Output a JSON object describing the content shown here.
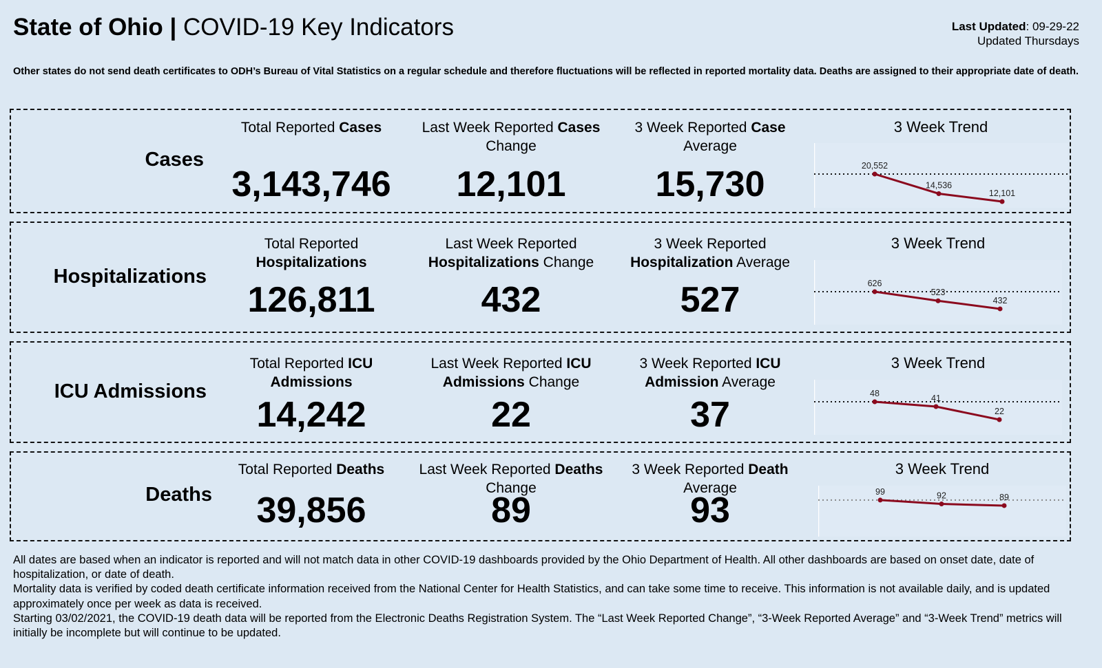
{
  "header": {
    "title_bold": "State of Ohio |",
    "title_rest": " COVID-19 Key Indicators",
    "last_updated_label": "Last Updated",
    "last_updated_value": ": 09-29-22",
    "update_schedule": "Updated Thursdays"
  },
  "note": "Other states do not send death certificates to ODH’s Bureau of Vital Statistics on a regular schedule and therefore fluctuations will be reflected in reported mortality data. Deaths are assigned to their appropriate date of death.",
  "sections": [
    {
      "label": "Cases",
      "c1": [
        "Total Reported ",
        "Cases",
        ""
      ],
      "c1v": "3,143,746",
      "c2": [
        "Last Week Reported ",
        "Cases",
        " Change"
      ],
      "c2v": "12,101",
      "c3": [
        "3 Week Reported ",
        "Case",
        " Average"
      ],
      "c3v": "15,730",
      "trend_title": "3 Week Trend"
    },
    {
      "label": "Hospitalizations",
      "c1": [
        "Total Reported ",
        "Hospitalizations",
        ""
      ],
      "c1v": "126,811",
      "c2": [
        "Last Week Reported ",
        "Hospitalizations",
        " Change"
      ],
      "c2v": "432",
      "c3": [
        "3 Week Reported ",
        "Hospitalization",
        " Average"
      ],
      "c3v": "527",
      "trend_title": "3 Week Trend"
    },
    {
      "label": "ICU Admissions",
      "c1": [
        "Total Reported ",
        "ICU Admissions",
        ""
      ],
      "c1v": "14,242",
      "c2": [
        "Last Week Reported ",
        "ICU Admissions",
        " Change"
      ],
      "c2v": "22",
      "c3": [
        "3 Week Reported ",
        "ICU Admission",
        " Average"
      ],
      "c3v": "37",
      "trend_title": "3 Week Trend"
    },
    {
      "label": "Deaths",
      "c1": [
        "Total Reported ",
        "Deaths",
        ""
      ],
      "c1v": "39,856",
      "c2": [
        "Last Week Reported ",
        "Deaths",
        " Change"
      ],
      "c2v": "89",
      "c3": [
        "3 Week Reported ",
        "Death",
        " Average"
      ],
      "c3v": "93",
      "trend_title": "3 Week Trend"
    }
  ],
  "chart_data": [
    {
      "type": "line",
      "title": "3 Week Trend",
      "series": "Cases",
      "values": [
        20552,
        14536,
        12101
      ],
      "labels": [
        "20,552",
        "14,536",
        "12,101"
      ],
      "ylim": [
        10200,
        30050
      ],
      "reference": 20552
    },
    {
      "type": "line",
      "title": "3 Week Trend",
      "series": "Hospitalizations",
      "values": [
        626,
        523,
        432
      ],
      "labels": [
        "626",
        "523",
        "432"
      ],
      "ylim": [
        253,
        983
      ],
      "reference": 626
    },
    {
      "type": "line",
      "title": "3 Week Trend",
      "series": "ICU Admissions",
      "values": [
        48,
        41,
        22
      ],
      "labels": [
        "48",
        "41",
        "22"
      ],
      "ylim": [
        0,
        80
      ],
      "reference": 48
    },
    {
      "type": "line",
      "title": "3 Week Trend",
      "series": "Deaths",
      "values": [
        99,
        92,
        89
      ],
      "labels": [
        "99",
        "92",
        "89"
      ],
      "ylim": [
        33,
        125
      ],
      "reference": 99
    }
  ],
  "colors": {
    "background": "#dce8f3",
    "line": "#8b0a1e"
  },
  "footer": [
    "All dates are based when an indicator is reported and will not match data in other COVID-19 dashboards provided by the Ohio Department of Health. All other dashboards are based on onset date, date of hospitalization, or date of death.",
    "Mortality data is verified by coded death certificate information received from the National Center for Health Statistics, and can take some time to receive. This information is not available daily, and is updated approximately once per week as data is received.",
    "Starting 03/02/2021, the COVID-19 death data will be reported from the Electronic Deaths Registration System. The “Last Week Reported Change”, “3-Week Reported Average” and “3-Week Trend” metrics will initially be incomplete but will continue to be updated."
  ]
}
